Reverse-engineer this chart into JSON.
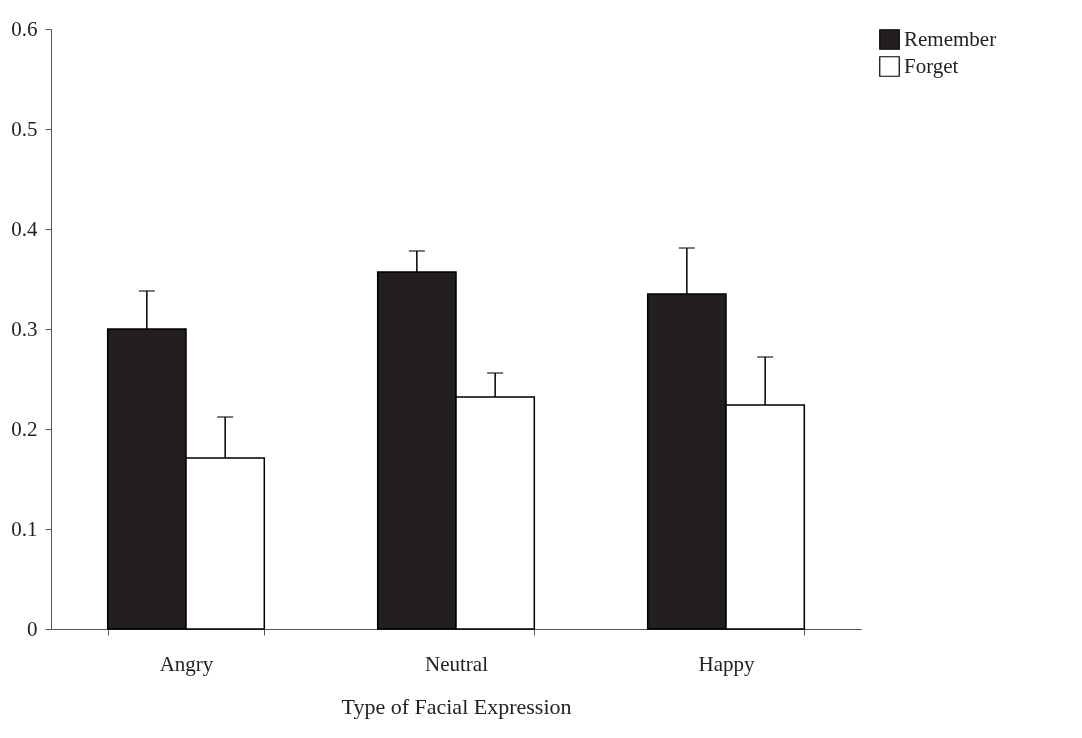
{
  "chart_data": {
    "type": "bar",
    "xlabel": "Type of Facial Expression",
    "categories": [
      "Angry",
      "Neutral",
      "Happy"
    ],
    "series": [
      {
        "name": "Remember",
        "color": "#231f20",
        "values": [
          0.3,
          0.357,
          0.335
        ],
        "errors": [
          [
            0.3,
            0.338
          ],
          [
            0.357,
            0.378
          ],
          [
            0.335,
            0.381
          ]
        ]
      },
      {
        "name": "Forget",
        "color": "#ffffff",
        "values": [
          0.171,
          0.232,
          0.224
        ],
        "errors": [
          [
            0.171,
            0.212
          ],
          [
            0.232,
            0.256
          ],
          [
            0.224,
            0.272
          ]
        ]
      }
    ],
    "ylim": [
      0,
      0.6
    ],
    "yticks": [
      0,
      0.1,
      0.2,
      0.3,
      0.4,
      0.5,
      0.6
    ],
    "grid": false,
    "legend": "right"
  }
}
